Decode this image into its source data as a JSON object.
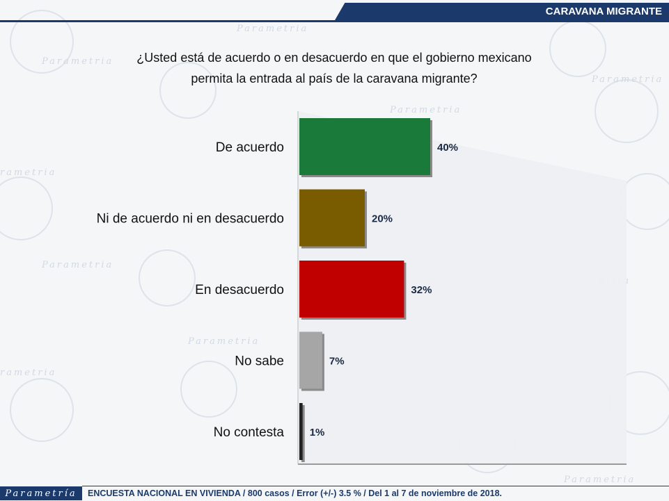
{
  "header": {
    "title": "CARAVANA MIGRANTE"
  },
  "question": {
    "line1": "¿Usted está de acuerdo o en desacuerdo en que el gobierno mexicano",
    "line2": "permita la entrada al país de la caravana migrante?"
  },
  "footer": {
    "logo": "Parametría",
    "note": "ENCUESTA NACIONAL EN VIVIENDA / 800 casos / Error (+/-) 3.5 % / Del 1 al 7 de noviembre de 2018."
  },
  "watermark": {
    "text": "Parametría"
  },
  "colors": {
    "brand": "#1b3a6b",
    "green": "#1a7a3a",
    "olive": "#7a5c00",
    "red": "#c00000",
    "gray": "#a6a6a6",
    "black": "#222222"
  },
  "chart_data": {
    "type": "bar",
    "orientation": "horizontal",
    "categories": [
      "De acuerdo",
      "Ni de acuerdo ni en desacuerdo",
      "En desacuerdo",
      "No sabe",
      "No contesta"
    ],
    "values": [
      40,
      20,
      32,
      7,
      1
    ],
    "value_labels": [
      "40%",
      "20%",
      "32%",
      "7%",
      "1%"
    ],
    "bar_colors": [
      "#1a7a3a",
      "#7a5c00",
      "#c00000",
      "#a6a6a6",
      "#222222"
    ],
    "xlim": [
      0,
      40
    ],
    "grid": false
  }
}
